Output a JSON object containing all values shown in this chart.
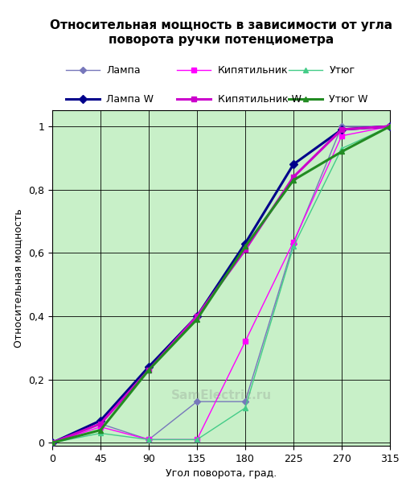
{
  "title": "Относительная мощность в зависимости от угла\nповорота ручки потенциометра",
  "xlabel": "Угол поворота, град.",
  "ylabel": "Относительная мощность",
  "bg_color": "#c8f0c8",
  "grid_color": "#000000",
  "xlim": [
    0,
    315
  ],
  "ylim": [
    -0.01,
    1.05
  ],
  "xticks": [
    0,
    45,
    90,
    135,
    180,
    225,
    270,
    315
  ],
  "yticks": [
    0,
    0.2,
    0.4,
    0.6,
    0.8,
    1
  ],
  "series": {
    "Лампа": {
      "x": [
        0,
        45,
        90,
        135,
        180,
        225,
        270,
        315
      ],
      "y": [
        0,
        0.06,
        0.01,
        0.13,
        0.13,
        0.63,
        1.0,
        1.0
      ],
      "color": "#7777bb",
      "linewidth": 1.0,
      "marker": "D",
      "markersize": 4,
      "zorder": 3
    },
    "Кипятильник": {
      "x": [
        0,
        45,
        90,
        135,
        180,
        225,
        270,
        315
      ],
      "y": [
        0,
        0.05,
        0.01,
        0.01,
        0.32,
        0.635,
        0.97,
        1.0
      ],
      "color": "#ff00ff",
      "linewidth": 1.0,
      "marker": "s",
      "markersize": 4,
      "zorder": 3
    },
    "Утюг": {
      "x": [
        0,
        45,
        90,
        135,
        180,
        225,
        270,
        315
      ],
      "y": [
        0,
        0.03,
        0.01,
        0.01,
        0.11,
        0.62,
        0.93,
        1.0
      ],
      "color": "#44cc88",
      "linewidth": 1.0,
      "marker": "^",
      "markersize": 4,
      "zorder": 3
    },
    "Лампа W": {
      "x": [
        0,
        45,
        90,
        135,
        180,
        225,
        270,
        315
      ],
      "y": [
        0,
        0.07,
        0.24,
        0.4,
        0.63,
        0.88,
        0.99,
        1.0
      ],
      "color": "#00008b",
      "linewidth": 2.2,
      "marker": "D",
      "markersize": 5,
      "zorder": 4
    },
    "Кипятильник W": {
      "x": [
        0,
        45,
        90,
        135,
        180,
        225,
        270,
        315
      ],
      "y": [
        0,
        0.06,
        0.23,
        0.4,
        0.61,
        0.84,
        0.99,
        1.0
      ],
      "color": "#cc00cc",
      "linewidth": 2.2,
      "marker": "s",
      "markersize": 5,
      "zorder": 4
    },
    "Утюг W": {
      "x": [
        0,
        45,
        90,
        135,
        180,
        225,
        270,
        315
      ],
      "y": [
        0,
        0.04,
        0.23,
        0.39,
        0.62,
        0.83,
        0.92,
        1.0
      ],
      "color": "#228B22",
      "linewidth": 2.2,
      "marker": "^",
      "markersize": 5,
      "zorder": 4
    }
  },
  "legend_row1": [
    "Лампа",
    "Кипятильник",
    "Утюг"
  ],
  "legend_row2": [
    "Лампа W",
    "Кипятильник W",
    "Утюг W"
  ],
  "watermark": "SamElectric.ru"
}
